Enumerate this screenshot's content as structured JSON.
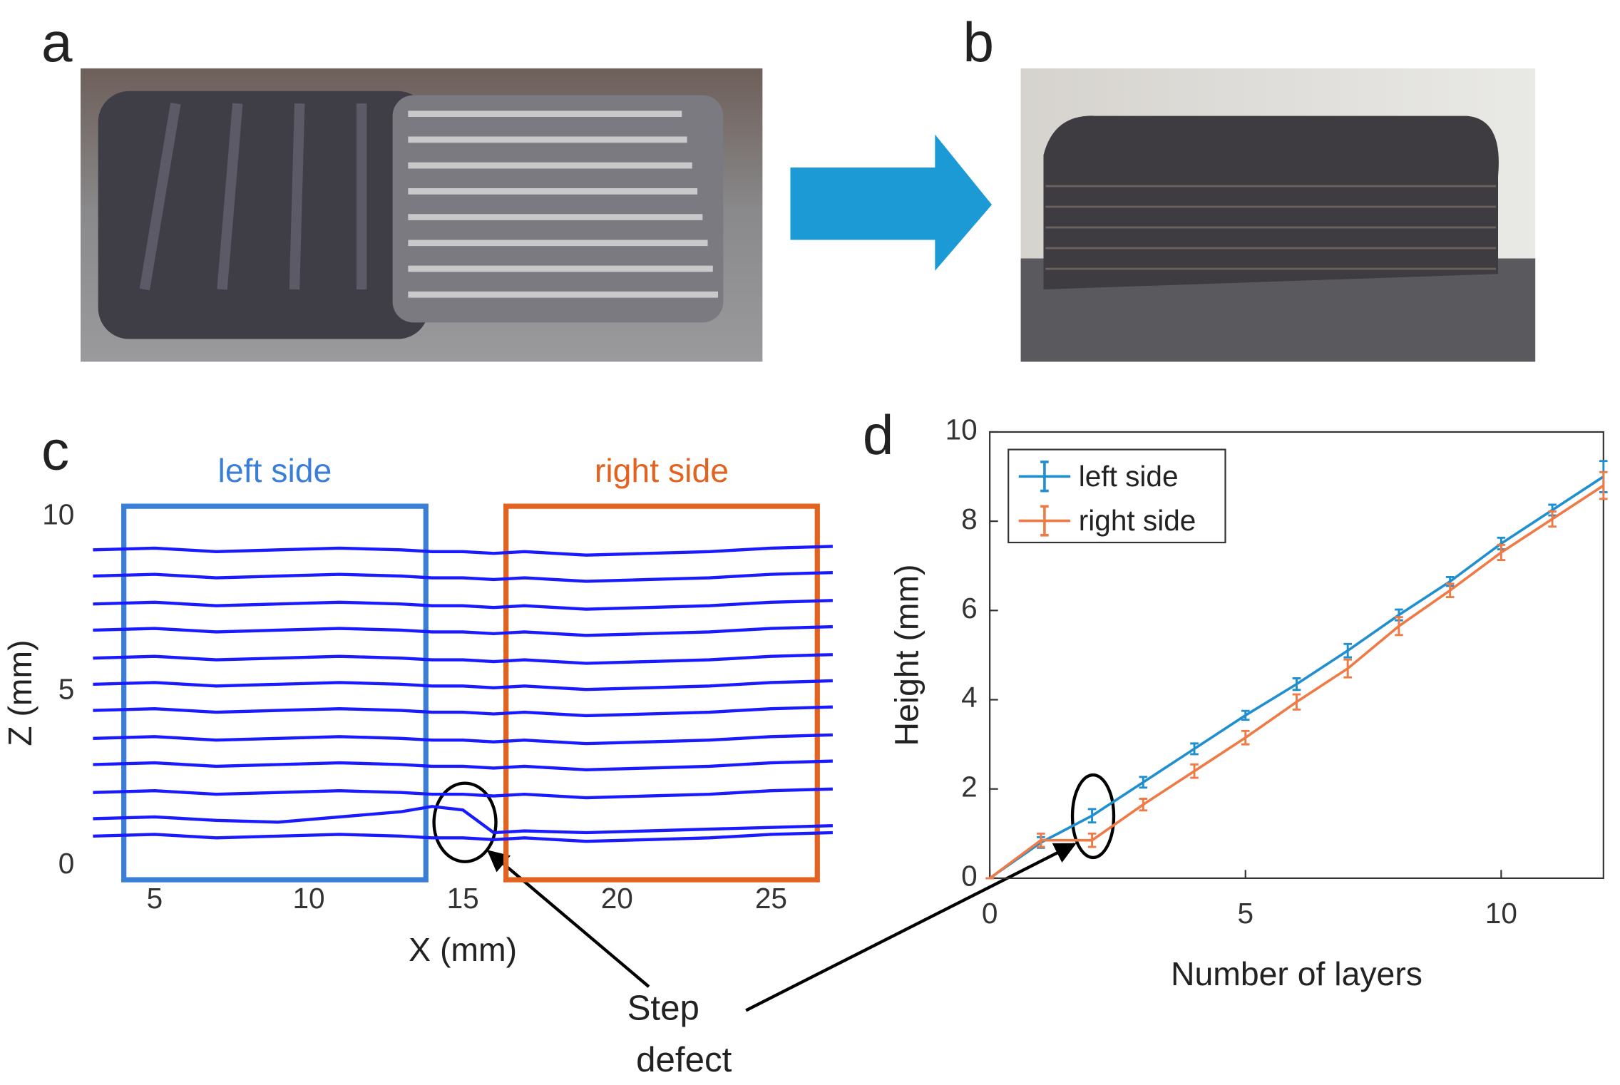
{
  "panel_labels": [
    "a",
    "b",
    "c",
    "d"
  ],
  "annotation": {
    "lines": [
      "Step",
      "defect"
    ]
  },
  "chart_data": [
    {
      "type": "line",
      "xlabel": "X (mm)",
      "ylabel": "Z (mm)",
      "x": [
        3,
        5,
        7,
        9,
        11,
        13,
        14,
        15,
        16,
        17,
        19,
        21,
        23,
        25,
        27
      ],
      "xlim": [
        3,
        27
      ],
      "xticks": [
        5,
        10,
        15,
        20,
        25
      ],
      "ylim": [
        -0.4,
        10.3
      ],
      "yticks": [
        0,
        5,
        10
      ],
      "regions": [
        {
          "label": "left side",
          "x": [
            4,
            13.8
          ],
          "color": "#3a7fd5"
        },
        {
          "label": "right side",
          "x": [
            16.4,
            26.5
          ],
          "color": "#e2621f"
        }
      ],
      "series": [
        {
          "color": "#1a1aff",
          "values": [
            0.85,
            0.9,
            0.8,
            0.85,
            0.9,
            0.85,
            0.8,
            0.8,
            0.75,
            0.8,
            0.7,
            0.75,
            0.8,
            0.9,
            0.95
          ]
        },
        {
          "color": "#1a1aff",
          "values": [
            1.35,
            1.4,
            1.3,
            1.25,
            1.4,
            1.55,
            1.7,
            1.6,
            0.95,
            1.0,
            0.95,
            1.0,
            1.05,
            1.1,
            1.15
          ]
        },
        {
          "color": "#1a1aff",
          "values": [
            2.1,
            2.15,
            2.05,
            2.1,
            2.15,
            2.1,
            2.05,
            2.05,
            2.0,
            2.05,
            1.95,
            2.0,
            2.05,
            2.15,
            2.2
          ]
        },
        {
          "color": "#1a1aff",
          "values": [
            2.9,
            2.95,
            2.85,
            2.9,
            2.95,
            2.9,
            2.85,
            2.85,
            2.8,
            2.85,
            2.75,
            2.8,
            2.85,
            2.95,
            3.0
          ]
        },
        {
          "color": "#1a1aff",
          "values": [
            3.65,
            3.7,
            3.6,
            3.65,
            3.7,
            3.65,
            3.6,
            3.6,
            3.55,
            3.6,
            3.5,
            3.55,
            3.6,
            3.7,
            3.75
          ]
        },
        {
          "color": "#1a1aff",
          "values": [
            4.45,
            4.5,
            4.4,
            4.45,
            4.5,
            4.45,
            4.4,
            4.4,
            4.35,
            4.4,
            4.3,
            4.35,
            4.4,
            4.5,
            4.55
          ]
        },
        {
          "color": "#1a1aff",
          "values": [
            5.2,
            5.25,
            5.15,
            5.2,
            5.25,
            5.2,
            5.15,
            5.15,
            5.1,
            5.15,
            5.05,
            5.1,
            5.15,
            5.25,
            5.3
          ]
        },
        {
          "color": "#1a1aff",
          "values": [
            5.95,
            6.0,
            5.9,
            5.95,
            6.0,
            5.95,
            5.9,
            5.9,
            5.85,
            5.9,
            5.8,
            5.85,
            5.9,
            6.0,
            6.05
          ]
        },
        {
          "color": "#1a1aff",
          "values": [
            6.75,
            6.8,
            6.7,
            6.75,
            6.8,
            6.75,
            6.7,
            6.7,
            6.65,
            6.7,
            6.6,
            6.65,
            6.7,
            6.8,
            6.85
          ]
        },
        {
          "color": "#1a1aff",
          "values": [
            7.5,
            7.55,
            7.45,
            7.5,
            7.55,
            7.5,
            7.45,
            7.45,
            7.4,
            7.45,
            7.35,
            7.4,
            7.45,
            7.55,
            7.6
          ]
        },
        {
          "color": "#1a1aff",
          "values": [
            8.3,
            8.35,
            8.25,
            8.3,
            8.35,
            8.3,
            8.25,
            8.25,
            8.2,
            8.25,
            8.15,
            8.2,
            8.25,
            8.35,
            8.4
          ]
        },
        {
          "color": "#1a1aff",
          "values": [
            9.05,
            9.1,
            9.0,
            9.05,
            9.1,
            9.05,
            9.0,
            9.0,
            8.95,
            9.0,
            8.9,
            8.95,
            9.0,
            9.1,
            9.15
          ]
        }
      ]
    },
    {
      "type": "errorbar",
      "xlabel": "Number of layers",
      "ylabel": "Height (mm)",
      "x": [
        0,
        1,
        2,
        3,
        4,
        5,
        6,
        7,
        8,
        9,
        10,
        11,
        12
      ],
      "xlim": [
        0,
        12
      ],
      "xticks": [
        0,
        5,
        10
      ],
      "ylim": [
        0,
        10
      ],
      "yticks": [
        0,
        2,
        4,
        6,
        8,
        10
      ],
      "legend": "northwest",
      "series": [
        {
          "name": "left side",
          "color": "#1f8fd0",
          "values": [
            0,
            0.8,
            1.4,
            2.15,
            2.9,
            3.65,
            4.35,
            5.1,
            5.9,
            6.65,
            7.5,
            8.25,
            9.0
          ],
          "errors": [
            0,
            0.12,
            0.15,
            0.12,
            0.12,
            0.1,
            0.13,
            0.15,
            0.12,
            0.1,
            0.13,
            0.12,
            0.35
          ]
        },
        {
          "name": "right side",
          "color": "#ef7a45",
          "values": [
            0,
            0.85,
            0.85,
            1.65,
            2.4,
            3.15,
            3.95,
            4.7,
            5.65,
            6.45,
            7.3,
            8.05,
            8.8
          ],
          "errors": [
            0,
            0.15,
            0.15,
            0.13,
            0.15,
            0.15,
            0.17,
            0.2,
            0.2,
            0.15,
            0.17,
            0.17,
            0.3
          ]
        }
      ]
    }
  ]
}
